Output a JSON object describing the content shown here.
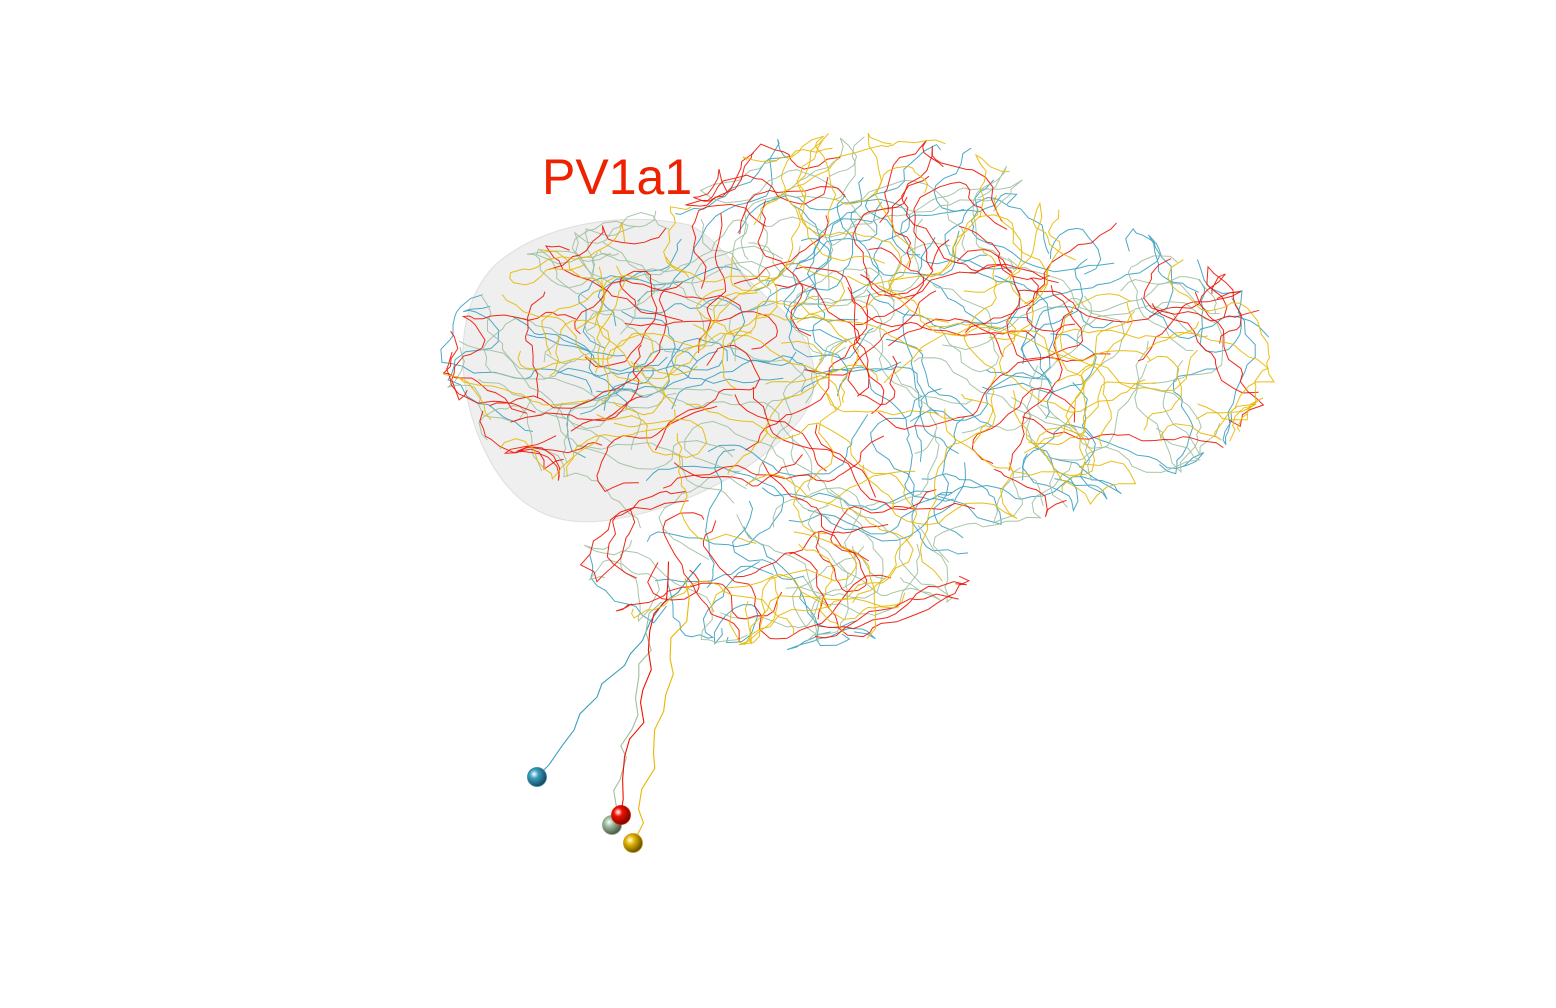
{
  "figure": {
    "label": "PV1a1",
    "label_color": "#ee2200"
  },
  "neuropil": {
    "name": "lateral-horn-mesh",
    "color": "#c8c8c8"
  },
  "neurons": [
    {
      "id": "neuron-blue",
      "color": "#3a9fbf",
      "soma_color": "#2f7f9f"
    },
    {
      "id": "neuron-sage",
      "color": "#9fbf9f",
      "soma_color": "#8a9a88"
    },
    {
      "id": "neuron-red",
      "color": "#ee1100",
      "soma_color": "#dd1100"
    },
    {
      "id": "neuron-gold",
      "color": "#e6b800",
      "soma_color": "#c09a10"
    }
  ]
}
